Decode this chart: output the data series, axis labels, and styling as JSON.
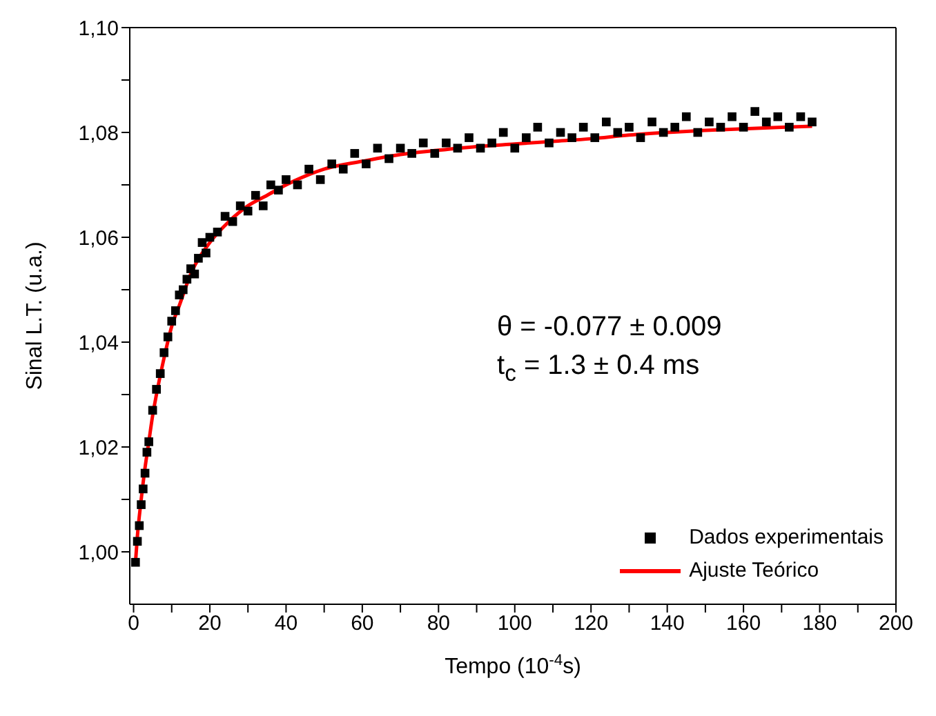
{
  "chart_data": {
    "type": "scatter",
    "xlabel": "Tempo (10$^{-4}$s)",
    "ylabel": "Sinal L.T. (u.a.)",
    "xlim": [
      -1,
      200
    ],
    "ylim": [
      0.99,
      1.1
    ],
    "xticks": [
      0,
      {
        "value": 10,
        "label": null
      },
      20,
      {
        "value": 30,
        "label": null
      },
      40,
      {
        "value": 50,
        "label": null
      },
      60,
      {
        "value": 70,
        "label": null
      },
      80,
      {
        "value": 90,
        "label": null
      },
      100,
      {
        "value": 110,
        "label": null
      },
      120,
      {
        "value": 130,
        "label": null
      },
      140,
      {
        "value": 150,
        "label": null
      },
      160,
      {
        "value": 170,
        "label": null
      },
      180,
      {
        "value": 190,
        "label": null
      },
      200
    ],
    "yticks": [
      {
        "value": 1.0,
        "label": "1,00"
      },
      {
        "value": 1.01,
        "label": null
      },
      {
        "value": 1.02,
        "label": "1,02"
      },
      {
        "value": 1.03,
        "label": null
      },
      {
        "value": 1.04,
        "label": "1,04"
      },
      {
        "value": 1.05,
        "label": null
      },
      {
        "value": 1.06,
        "label": "1,06"
      },
      {
        "value": 1.07,
        "label": null
      },
      {
        "value": 1.08,
        "label": "1,08"
      },
      {
        "value": 1.09,
        "label": null
      },
      {
        "value": 1.1,
        "label": "1,10"
      }
    ],
    "grid": false,
    "legend": "bottom right",
    "marker": "square",
    "annotations": [
      "θ = -0.077 ± 0.009",
      "t$_{c}$ = 1.3 ± 0.4 ms"
    ],
    "series": [
      {
        "name": "Dados experimentais",
        "color": "#000000",
        "x": [
          0.5,
          1,
          1.5,
          2,
          2.5,
          3,
          3.5,
          4,
          5,
          6,
          7,
          8,
          9,
          10,
          11,
          12,
          13,
          14,
          15,
          16,
          17,
          18,
          19,
          20,
          22,
          24,
          26,
          28,
          30,
          32,
          34,
          36,
          38,
          40,
          43,
          46,
          49,
          52,
          55,
          58,
          61,
          64,
          67,
          70,
          73,
          76,
          79,
          82,
          85,
          88,
          91,
          94,
          97,
          100,
          103,
          106,
          109,
          112,
          115,
          118,
          121,
          124,
          127,
          130,
          133,
          136,
          139,
          142,
          145,
          148,
          151,
          154,
          157,
          160,
          163,
          166,
          169,
          172,
          175,
          178
        ],
        "values": [
          0.998,
          1.002,
          1.005,
          1.009,
          1.012,
          1.015,
          1.019,
          1.021,
          1.027,
          1.031,
          1.034,
          1.038,
          1.041,
          1.044,
          1.046,
          1.049,
          1.05,
          1.052,
          1.054,
          1.053,
          1.056,
          1.059,
          1.057,
          1.06,
          1.061,
          1.064,
          1.063,
          1.066,
          1.065,
          1.068,
          1.066,
          1.07,
          1.069,
          1.071,
          1.07,
          1.073,
          1.071,
          1.074,
          1.073,
          1.076,
          1.074,
          1.077,
          1.075,
          1.077,
          1.076,
          1.078,
          1.076,
          1.078,
          1.077,
          1.079,
          1.077,
          1.078,
          1.08,
          1.077,
          1.079,
          1.081,
          1.078,
          1.08,
          1.079,
          1.081,
          1.079,
          1.082,
          1.08,
          1.081,
          1.079,
          1.082,
          1.08,
          1.081,
          1.083,
          1.08,
          1.082,
          1.081,
          1.083,
          1.081,
          1.084,
          1.082,
          1.083,
          1.081,
          1.083,
          1.082
        ]
      },
      {
        "name": "Ajuste Teórico",
        "type": "line",
        "color": "#ff0000",
        "line_style": "solid",
        "marker": "none",
        "x": [
          0.5,
          1,
          2,
          3,
          4,
          5,
          6,
          8,
          10,
          12,
          15,
          20,
          25,
          30,
          35,
          40,
          50,
          60,
          70,
          80,
          90,
          100,
          110,
          120,
          130,
          140,
          150,
          160,
          170,
          178
        ],
        "values": [
          0.998,
          1.003,
          1.01,
          1.016,
          1.021,
          1.026,
          1.03,
          1.037,
          1.043,
          1.047,
          1.053,
          1.059,
          1.063,
          1.066,
          1.068,
          1.07,
          1.073,
          1.0745,
          1.0758,
          1.0766,
          1.0773,
          1.0778,
          1.0783,
          1.0788,
          1.0795,
          1.08,
          1.0804,
          1.0807,
          1.081,
          1.0812
        ]
      }
    ]
  }
}
